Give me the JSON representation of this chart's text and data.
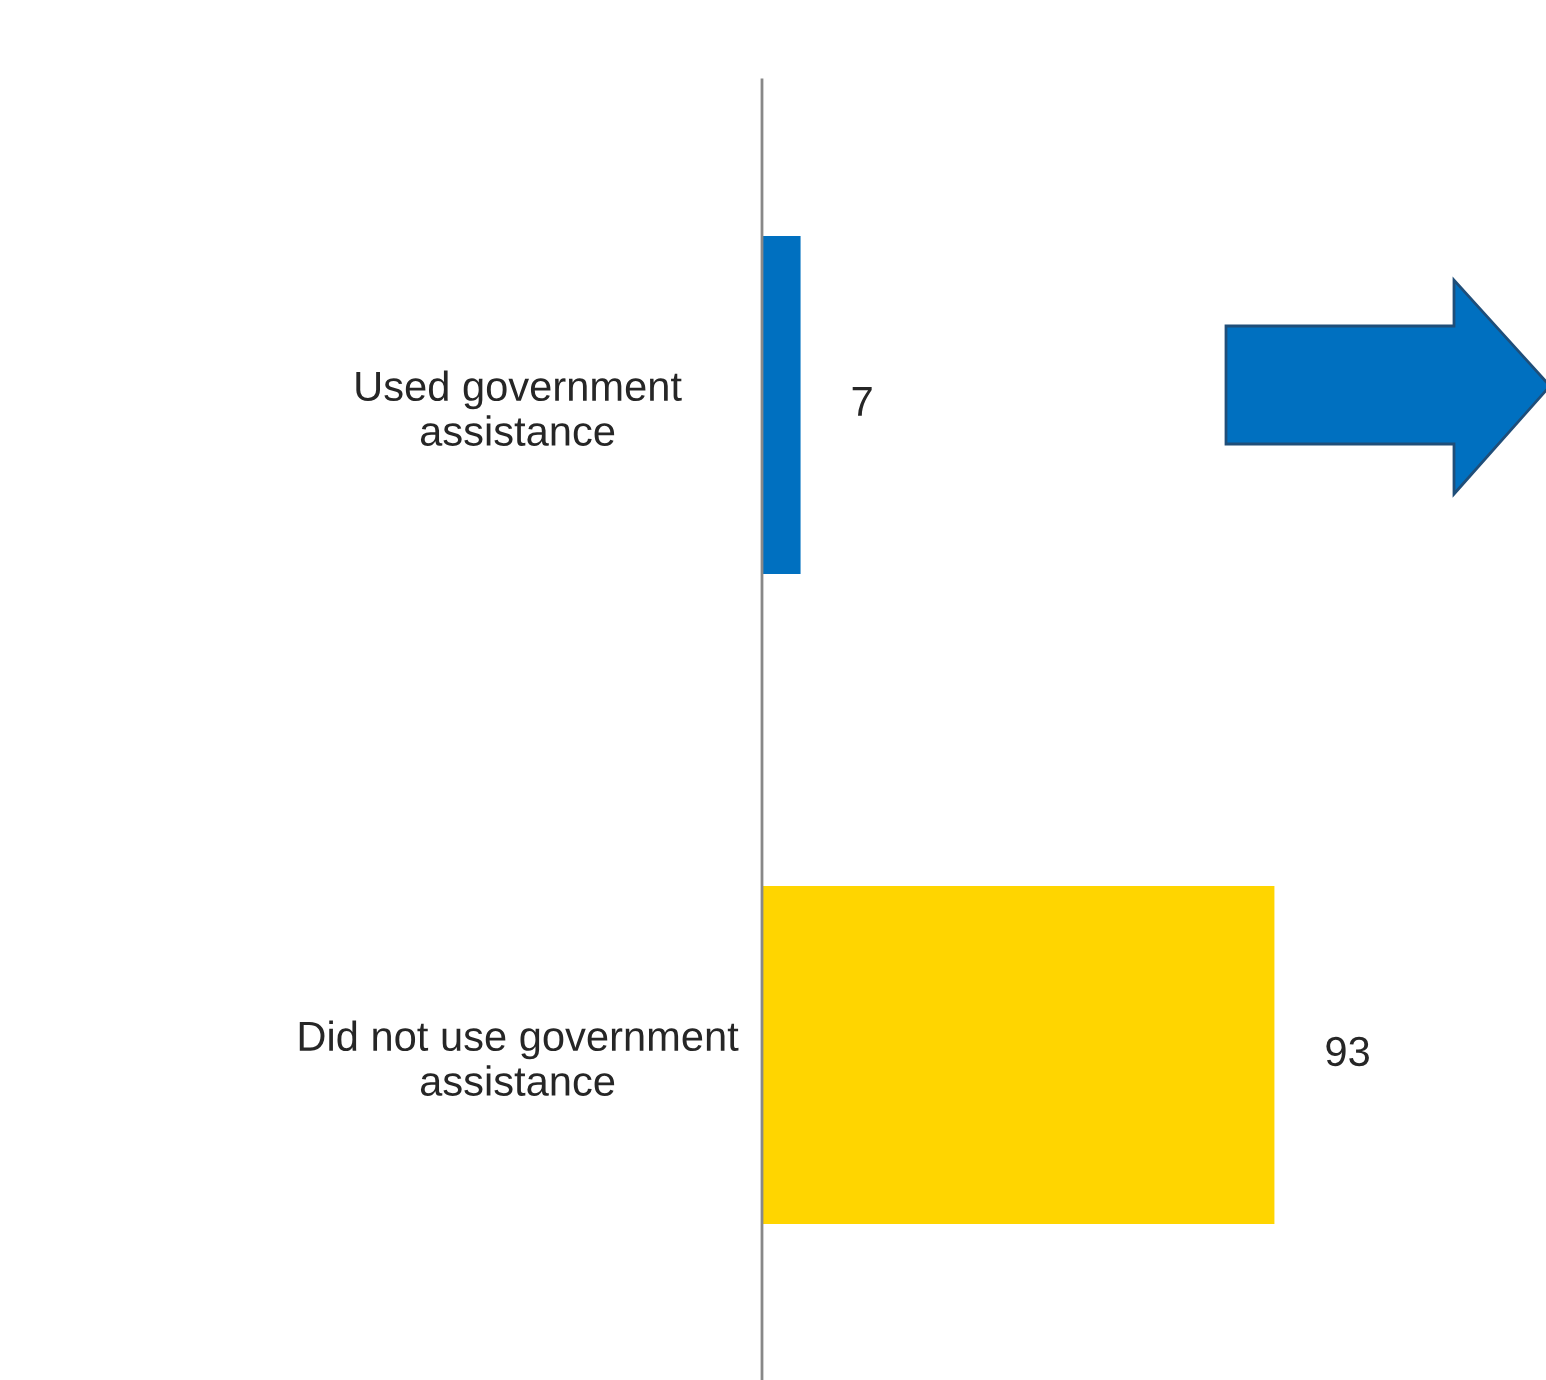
{
  "chart_data": {
    "type": "bar",
    "orientation": "horizontal",
    "categories": [
      "Used government\nassistance",
      "Did not use government\nassistance"
    ],
    "values": [
      7,
      93
    ],
    "colors": [
      "#0070c0",
      "#ffd500"
    ],
    "data_labels": true,
    "grid": false,
    "legend": false
  }
}
